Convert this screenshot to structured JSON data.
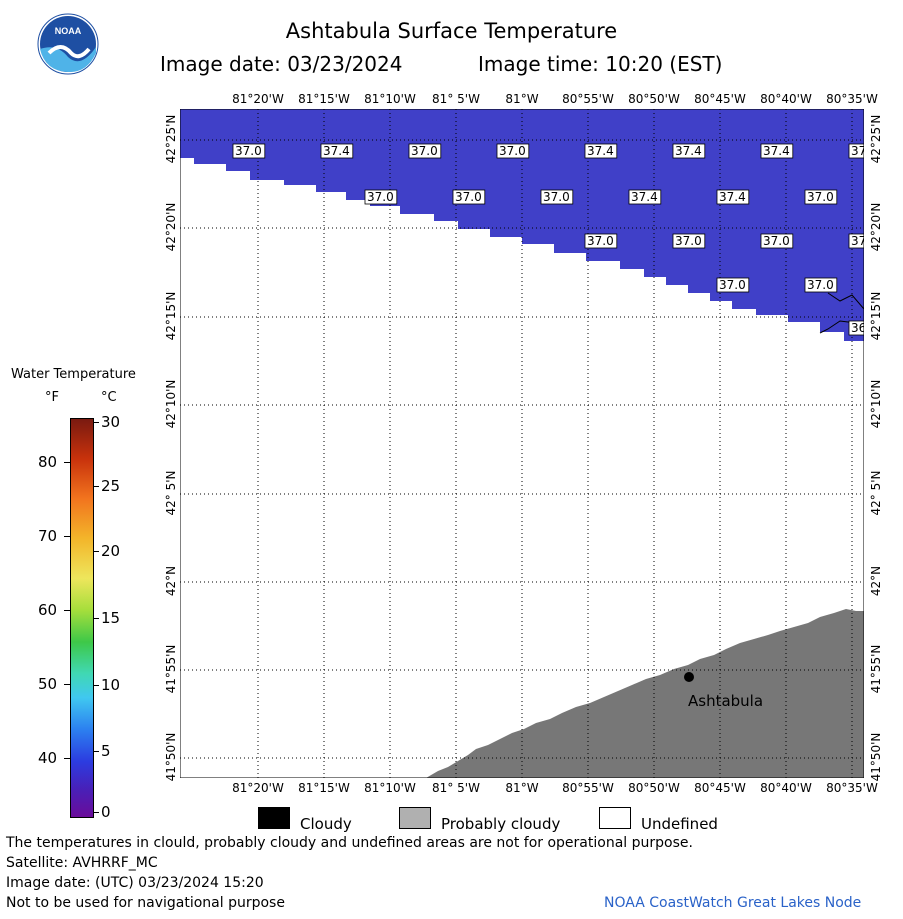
{
  "header": {
    "title": "Ashtabula Surface Temperature",
    "image_date": "Image date: 03/23/2024",
    "image_time": "Image time: 10:20 (EST)"
  },
  "logo": {
    "text": "NOAA",
    "icon": "noaa-logo-icon",
    "colors": [
      "#1e4fa3",
      "#4fb3e8",
      "#ffffff"
    ]
  },
  "map": {
    "lon_labels": [
      "81°20'W",
      "81°15'W",
      "81°10'W",
      "81° 5'W",
      "81°W",
      "80°55'W",
      "80°50'W",
      "80°45'W",
      "80°40'W",
      "80°35'W"
    ],
    "lat_labels": [
      "42°25'N",
      "42°20'N",
      "42°15'N",
      "42°10'N",
      "42° 5'N",
      "42°N",
      "41°55'N",
      "41°50'N"
    ],
    "water_color": "#4040c8",
    "land_color": "#777777",
    "city": "Ashtabula",
    "temperature_labels": [
      {
        "value": "37.0",
        "lon": "81°19'W",
        "lat": "42°24'N"
      },
      {
        "value": "37.4",
        "lon": "81°15'W",
        "lat": "42°24'N"
      },
      {
        "value": "37.0",
        "lon": "81°11'W",
        "lat": "42°24'N"
      },
      {
        "value": "37.0",
        "lon": "81°07'W",
        "lat": "42°24'N"
      },
      {
        "value": "37.4",
        "lon": "81°03'W",
        "lat": "42°24'N"
      },
      {
        "value": "37.4",
        "lon": "80°59'W",
        "lat": "42°24'N"
      },
      {
        "value": "37.4",
        "lon": "80°55'W",
        "lat": "42°24'N"
      },
      {
        "value": "37",
        "lon": "80°51'W",
        "lat": "42°24'N"
      },
      {
        "value": "37.0",
        "lon": "81°13'W",
        "lat": "42°22'N"
      },
      {
        "value": "37.0",
        "lon": "81°09'W",
        "lat": "42°22'N"
      },
      {
        "value": "37.0",
        "lon": "81°05'W",
        "lat": "42°22'N"
      },
      {
        "value": "37.4",
        "lon": "81°01'W",
        "lat": "42°22'N"
      },
      {
        "value": "37.4",
        "lon": "80°57'W",
        "lat": "42°22'N"
      },
      {
        "value": "37.0",
        "lon": "80°53'W",
        "lat": "42°22'N"
      },
      {
        "value": "37.0",
        "lon": "81°03'W",
        "lat": "42°19'N"
      },
      {
        "value": "37.0",
        "lon": "80°59'W",
        "lat": "42°19'N"
      },
      {
        "value": "37.0",
        "lon": "80°55'W",
        "lat": "42°19'N"
      },
      {
        "value": "37",
        "lon": "80°51'W",
        "lat": "42°19'N"
      },
      {
        "value": "37.0",
        "lon": "80°57'W",
        "lat": "42°17'N"
      },
      {
        "value": "37.0",
        "lon": "80°53'W",
        "lat": "42°17'N"
      },
      {
        "value": "36",
        "lon": "80°51'W",
        "lat": "42°15'N"
      }
    ]
  },
  "scale": {
    "title": "Water Temperature",
    "unit_f": "°F",
    "unit_c": "°C",
    "f_labels": [
      "80",
      "70",
      "60",
      "50",
      "40"
    ],
    "c_labels": [
      "30",
      "25",
      "20",
      "15",
      "10",
      "5",
      "0"
    ]
  },
  "legend": {
    "cloudy": "Cloudy",
    "probably_cloudy": "Probably cloudy",
    "undefined": "Undefined"
  },
  "footer": {
    "disclaimer": "The temperatures in clould, probably cloudy and undefined areas are not for operational purpose.",
    "satellite": "Satellite: AVHRRF_MC",
    "utc_date": "Image date: (UTC) 03/23/2024  15:20",
    "nav_warning": "Not to be used for navigational purpose",
    "credit": "NOAA CoastWatch Great Lakes Node"
  }
}
